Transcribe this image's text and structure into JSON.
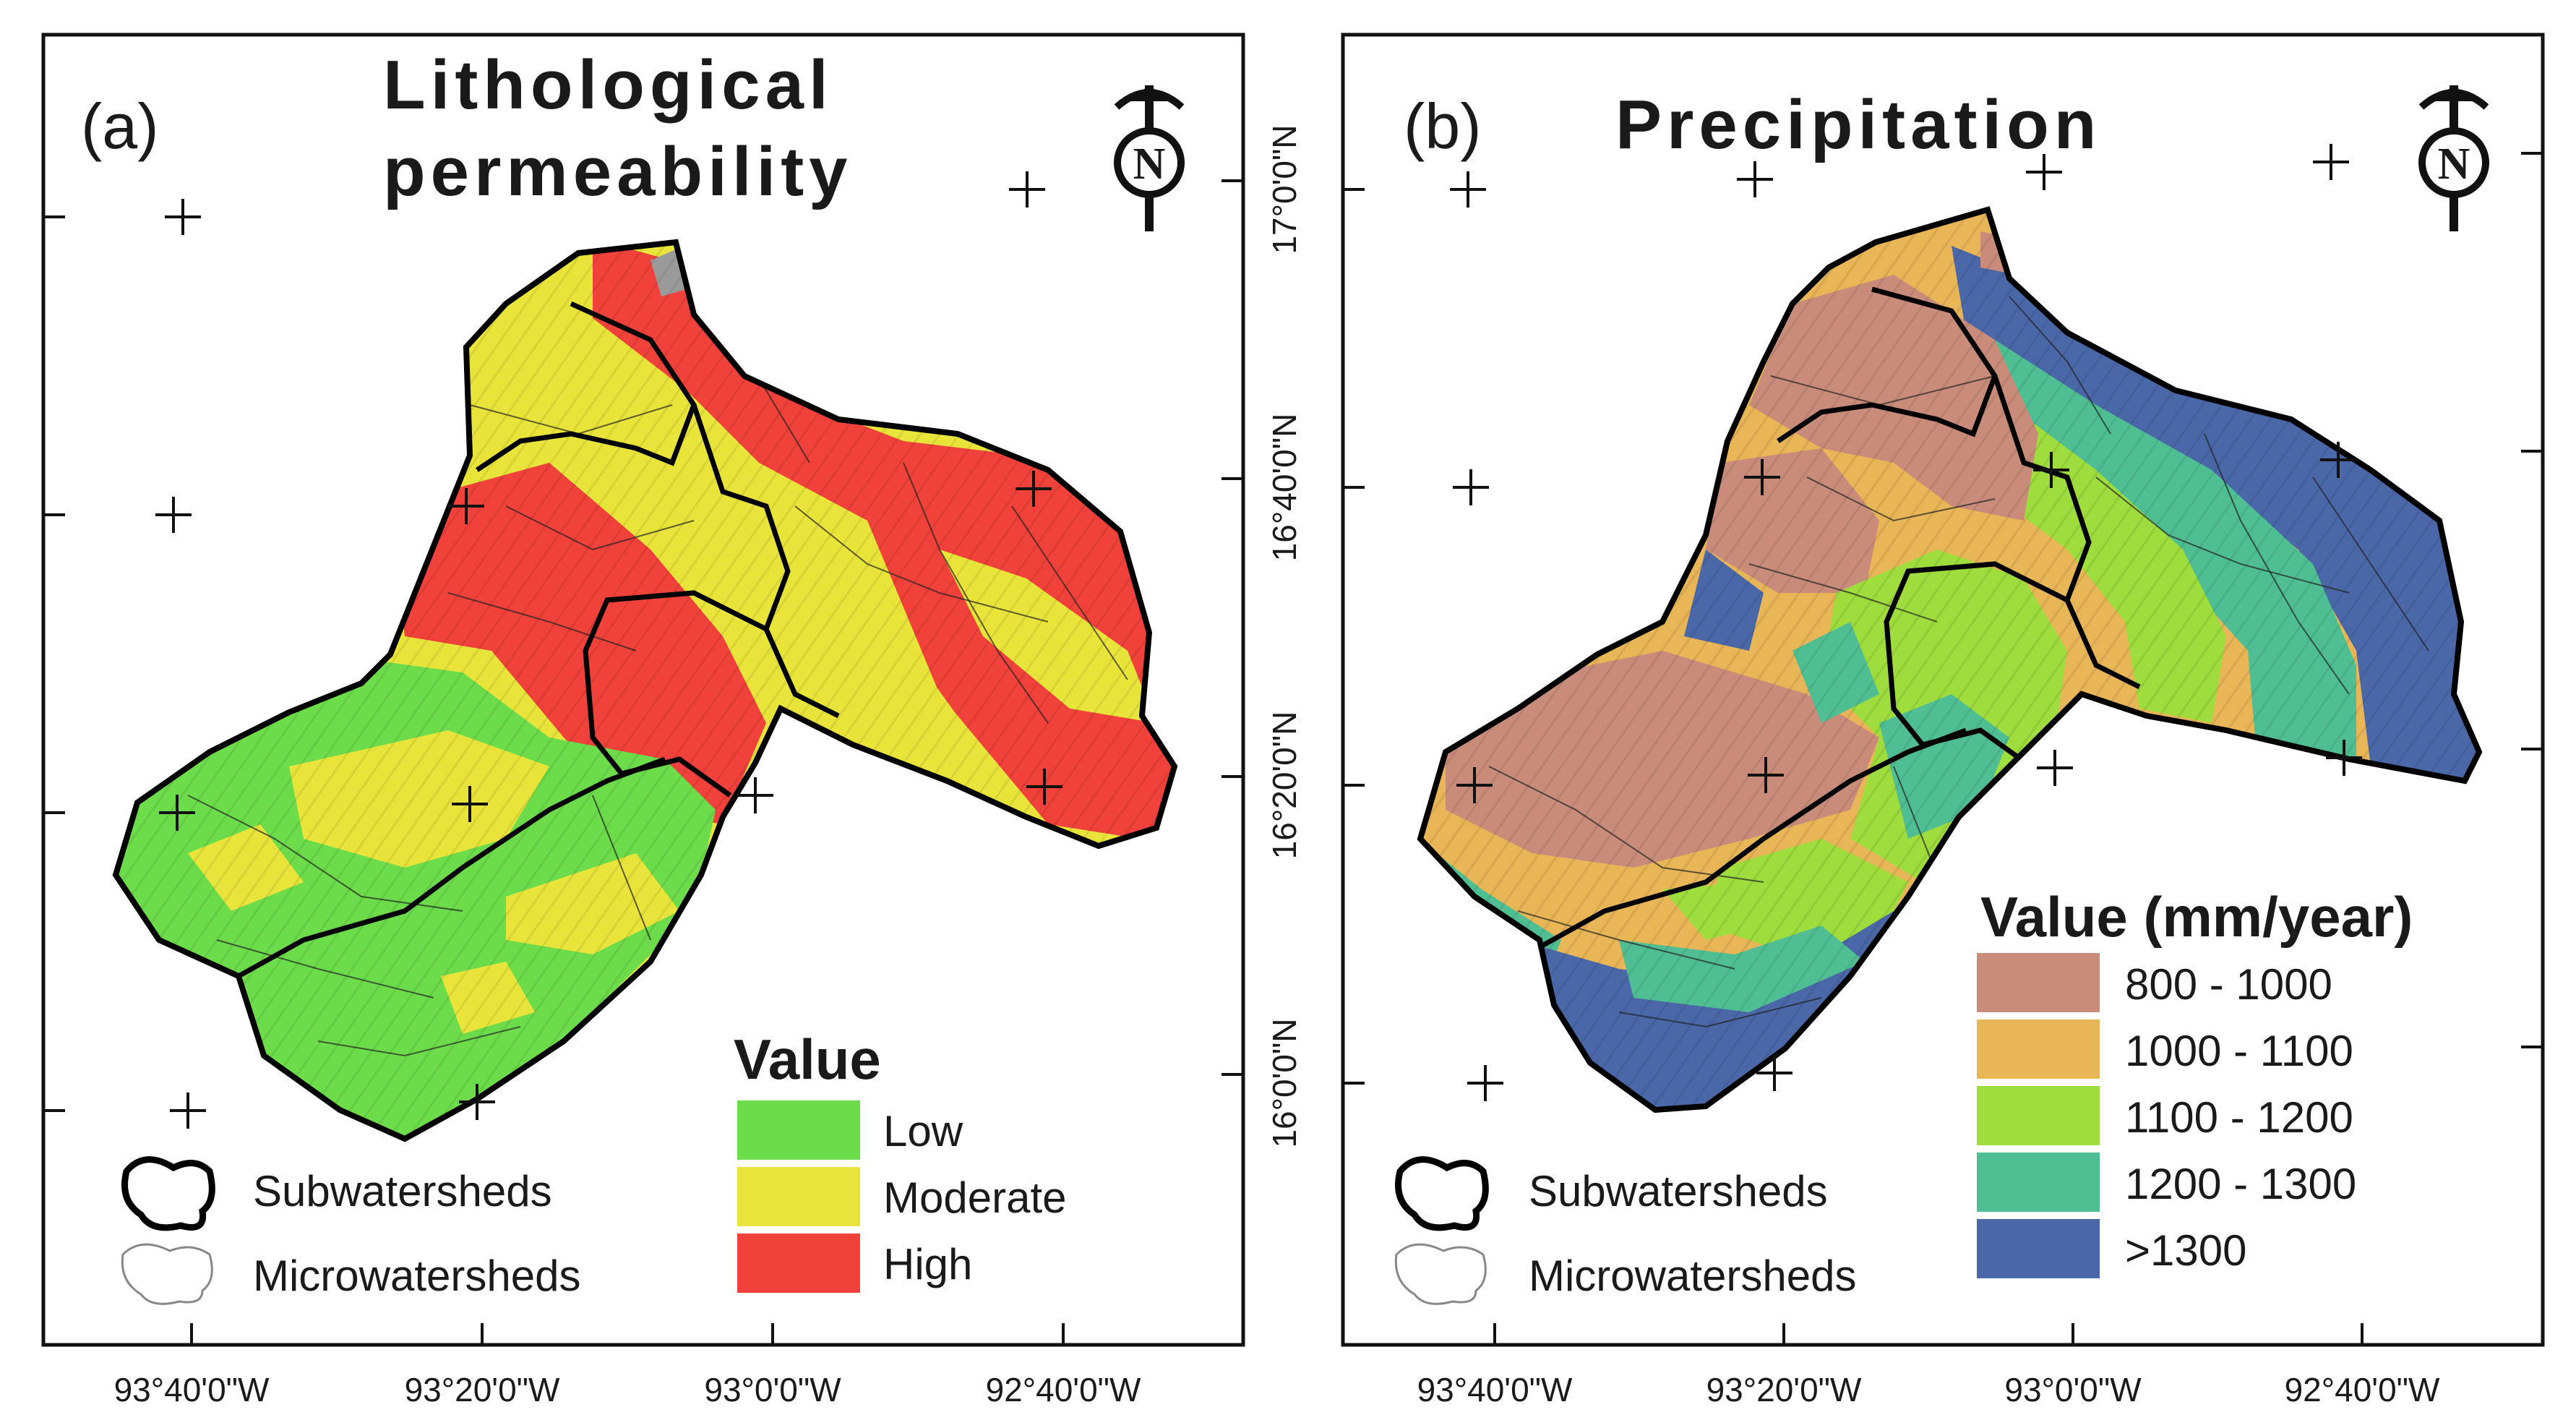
{
  "panel_a": {
    "letter": "(a)",
    "title_line1": "Lithological",
    "title_line2": "permeability",
    "north": "N",
    "x_ticks": [
      "93°40'0\"W",
      "93°20'0\"W",
      "93°0'0\"W",
      "92°40'0\"W"
    ],
    "legend": {
      "heading": "Value",
      "classes": [
        {
          "label": "Low",
          "color": "#6ddc4b"
        },
        {
          "label": "Moderate",
          "color": "#e9e43a"
        },
        {
          "label": "High",
          "color": "#f0413a"
        }
      ]
    },
    "boundaries": {
      "subwatersheds": "Subwatersheds",
      "microwatersheds": "Microwatersheds"
    }
  },
  "panel_b": {
    "letter": "(b)",
    "title": "Precipitation",
    "north": "N",
    "x_ticks": [
      "93°40'0\"W",
      "93°20'0\"W",
      "93°0'0\"W",
      "92°40'0\"W"
    ],
    "y_ticks": [
      "17°0'0\"N",
      "16°40'0\"N",
      "16°20'0\"N",
      "16°0'0\"N"
    ],
    "legend": {
      "heading": "Value (mm/year)",
      "classes": [
        {
          "label": "800 - 1000",
          "color": "#c98c7a"
        },
        {
          "label": "1000 - 1100",
          "color": "#e8b557"
        },
        {
          "label": "1100 - 1200",
          "color": "#9fdc3d"
        },
        {
          "label": "1200 - 1300",
          "color": "#4fbf93"
        },
        {
          "label": ">1300",
          "color": "#4a67a8"
        }
      ]
    },
    "boundaries": {
      "subwatersheds": "Subwatersheds",
      "microwatersheds": "Microwatersheds"
    }
  }
}
